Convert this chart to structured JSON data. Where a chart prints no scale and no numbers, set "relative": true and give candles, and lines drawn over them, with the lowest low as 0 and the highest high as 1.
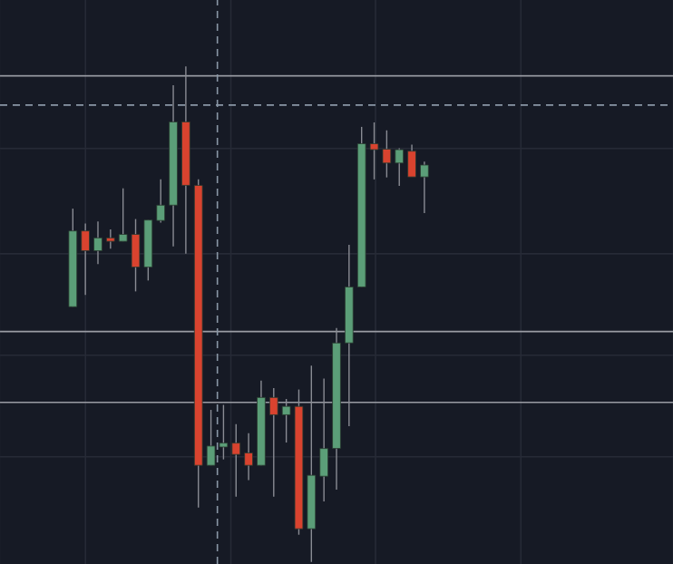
{
  "chart_data": {
    "type": "candlestick",
    "relative": true,
    "grid": true,
    "categories": [
      null,
      null,
      null,
      null,
      null,
      null,
      null,
      null,
      null,
      null,
      null,
      null,
      null,
      null,
      null,
      null,
      null,
      null,
      null,
      null,
      null,
      null,
      null,
      null,
      null,
      null,
      null,
      null,
      null
    ],
    "ohlc": [
      [
        0.515,
        0.713,
        0.515,
        0.668
      ],
      [
        0.668,
        0.683,
        0.539,
        0.628
      ],
      [
        0.628,
        0.687,
        0.601,
        0.654
      ],
      [
        0.654,
        0.671,
        0.632,
        0.647
      ],
      [
        0.647,
        0.754,
        0.647,
        0.661
      ],
      [
        0.661,
        0.692,
        0.546,
        0.595
      ],
      [
        0.595,
        0.69,
        0.568,
        0.69
      ],
      [
        0.689,
        0.772,
        0.685,
        0.72
      ],
      [
        0.72,
        0.962,
        0.637,
        0.888
      ],
      [
        0.888,
        1.0,
        0.622,
        0.76
      ],
      [
        0.76,
        0.772,
        0.11,
        0.195
      ],
      [
        0.195,
        0.307,
        0.195,
        0.234
      ],
      [
        0.232,
        0.317,
        0.207,
        0.24
      ],
      [
        0.24,
        0.278,
        0.132,
        0.217
      ],
      [
        0.22,
        0.26,
        0.165,
        0.195
      ],
      [
        0.195,
        0.366,
        0.195,
        0.332
      ],
      [
        0.332,
        0.351,
        0.132,
        0.297
      ],
      [
        0.297,
        0.329,
        0.241,
        0.314
      ],
      [
        0.314,
        0.348,
        0.055,
        0.067
      ],
      [
        0.067,
        0.396,
        0.0,
        0.175
      ],
      [
        0.173,
        0.37,
        0.122,
        0.229
      ],
      [
        0.229,
        0.472,
        0.146,
        0.442
      ],
      [
        0.442,
        0.64,
        0.274,
        0.555
      ],
      [
        0.555,
        0.878,
        0.555,
        0.844
      ],
      [
        0.844,
        0.887,
        0.772,
        0.832
      ],
      [
        0.833,
        0.871,
        0.776,
        0.805
      ],
      [
        0.805,
        0.835,
        0.759,
        0.832
      ],
      [
        0.829,
        0.842,
        0.777,
        0.777
      ],
      [
        0.777,
        0.808,
        0.704,
        0.801
      ]
    ],
    "colors": [
      "#5b9e78",
      "#d9432f",
      "#5b9e78",
      "#d9432f",
      "#5b9e78",
      "#d9432f",
      "#5b9e78",
      "#5b9e78",
      "#5b9e78",
      "#d9432f",
      "#d9432f",
      "#5b9e78",
      "#5b9e78",
      "#d9432f",
      "#d9432f",
      "#5b9e78",
      "#d9432f",
      "#5b9e78",
      "#d9432f",
      "#5b9e78",
      "#5b9e78",
      "#5b9e78",
      "#5b9e78",
      "#5b9e78",
      "#d9432f",
      "#d9432f",
      "#5b9e78",
      "#d9432f",
      "#5b9e78"
    ],
    "ref_lines": [
      {
        "axis": "y",
        "value": 0.981,
        "color": "#9a9ca4"
      },
      {
        "axis": "y",
        "value": 0.465,
        "color": "#9a9ca4"
      },
      {
        "axis": "y",
        "value": 0.322,
        "color": "#9a9ca4"
      },
      {
        "axis": "y",
        "value": 0.922,
        "color": "#8a97a6",
        "line_style": "dashed"
      }
    ]
  }
}
